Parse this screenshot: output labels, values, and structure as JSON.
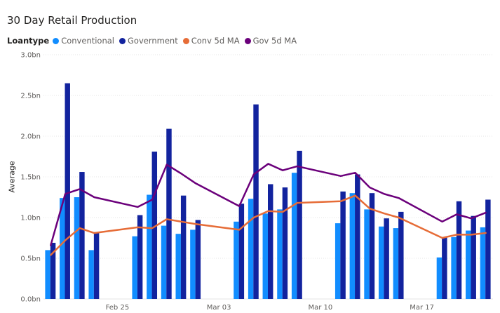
{
  "header": {
    "title": "30 Day Retail Production"
  },
  "legend": {
    "title": "Loantype",
    "items": [
      {
        "label": "Conventional",
        "color": "#118DFF"
      },
      {
        "label": "Government",
        "color": "#12239E"
      },
      {
        "label": "Conv 5d MA",
        "color": "#E66C37"
      },
      {
        "label": "Gov 5d MA",
        "color": "#6B007B"
      }
    ]
  },
  "chart_data": {
    "type": "bar",
    "title": "30 Day Retail Production",
    "ylabel": "Average",
    "xlabel": "",
    "ylim": [
      0,
      3.0
    ],
    "y_ticks": [
      "0.0bn",
      "0.5bn",
      "1.0bn",
      "1.5bn",
      "2.0bn",
      "2.5bn",
      "3.0bn"
    ],
    "x_tick_labels": [
      "Feb 25",
      "Mar 03",
      "Mar 10",
      "Mar 17"
    ],
    "grid": "horizontal",
    "legend_position": "top-left",
    "dates": [
      "Feb 20",
      "Feb 21",
      "Feb 22",
      "Feb 23",
      "Feb 24",
      "Feb 25",
      "Feb 26",
      "Feb 27",
      "Feb 28",
      "Feb 29",
      "Mar 01",
      "Mar 02",
      "Mar 03",
      "Mar 04",
      "Mar 05",
      "Mar 06",
      "Mar 07",
      "Mar 08",
      "Mar 09",
      "Mar 10",
      "Mar 11",
      "Mar 12",
      "Mar 13",
      "Mar 14",
      "Mar 15",
      "Mar 16",
      "Mar 17",
      "Mar 18",
      "Mar 19",
      "Mar 20",
      "Mar 21"
    ],
    "series": [
      {
        "name": "Conventional",
        "kind": "bar",
        "color": "#118DFF",
        "values": [
          0.6,
          1.24,
          1.25,
          0.6,
          null,
          null,
          0.77,
          1.28,
          0.9,
          0.8,
          0.85,
          null,
          null,
          0.95,
          1.23,
          1.05,
          1.1,
          1.55,
          null,
          null,
          0.93,
          1.3,
          1.1,
          0.89,
          0.87,
          null,
          null,
          0.51,
          0.76,
          0.84,
          0.88
        ]
      },
      {
        "name": "Government",
        "kind": "bar",
        "color": "#12239E",
        "values": [
          0.69,
          2.65,
          1.56,
          0.82,
          null,
          null,
          1.03,
          1.81,
          2.09,
          1.27,
          0.97,
          null,
          null,
          1.17,
          2.39,
          1.41,
          1.37,
          1.82,
          null,
          null,
          1.32,
          1.53,
          1.3,
          0.99,
          1.07,
          null,
          null,
          0.76,
          1.2,
          1.02,
          1.22
        ]
      },
      {
        "name": "Conv 5d MA",
        "kind": "line",
        "color": "#E66C37",
        "values": [
          0.54,
          0.72,
          0.87,
          0.81,
          null,
          null,
          0.88,
          0.87,
          0.98,
          0.95,
          0.92,
          null,
          null,
          0.85,
          1.0,
          1.08,
          1.07,
          1.18,
          null,
          null,
          1.2,
          1.27,
          1.11,
          1.05,
          1.0,
          null,
          null,
          0.75,
          0.79,
          0.79,
          0.81
        ]
      },
      {
        "name": "Gov 5d MA",
        "kind": "line",
        "color": "#6B007B",
        "values": [
          0.66,
          1.29,
          1.35,
          1.25,
          null,
          null,
          1.13,
          1.22,
          1.65,
          1.54,
          1.42,
          null,
          null,
          1.14,
          1.53,
          1.66,
          1.58,
          1.63,
          null,
          null,
          1.51,
          1.55,
          1.37,
          1.29,
          1.24,
          null,
          null,
          0.95,
          1.04,
          0.99,
          1.06
        ]
      }
    ]
  }
}
